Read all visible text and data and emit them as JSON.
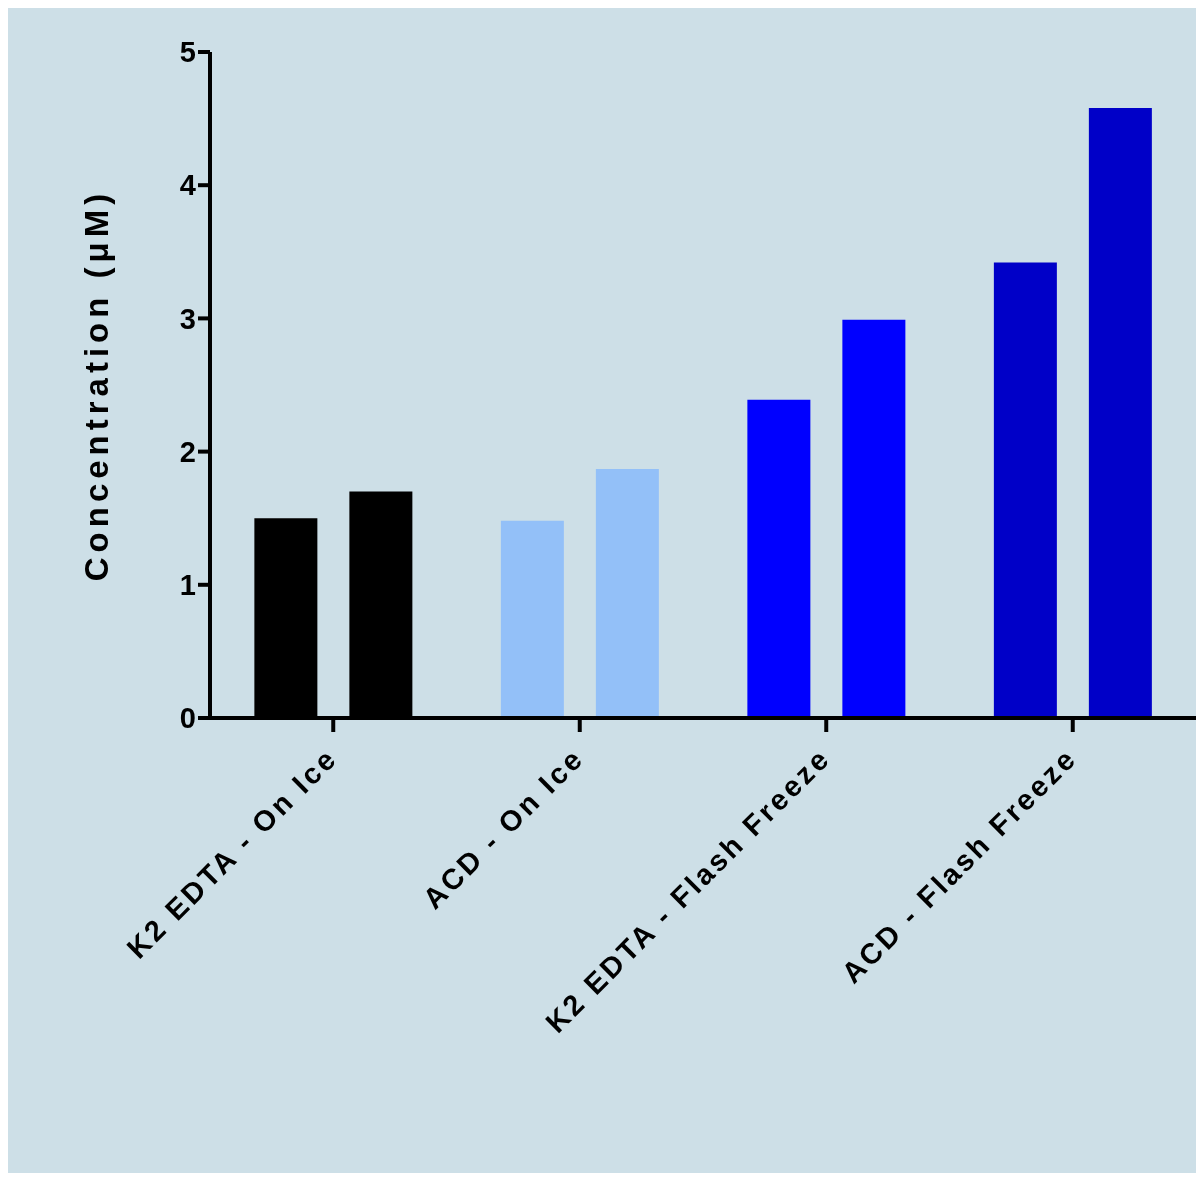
{
  "chart_data": {
    "type": "bar",
    "ylabel": "Concentration (μM)",
    "categories": [
      "K2 EDTA - On Ice",
      "ACD - On Ice",
      "K2 EDTA - Flash Freeze",
      "ACD - Flash Freeze"
    ],
    "series": [
      {
        "colors": [
          "#000000",
          "#93c0f8",
          "#0000ff",
          "#0000c8"
        ],
        "values": [
          1.5,
          1.48,
          2.39,
          3.42
        ]
      },
      {
        "colors": [
          "#000000",
          "#93c0f8",
          "#0000ff",
          "#0000c8"
        ],
        "values": [
          1.7,
          1.87,
          2.99,
          4.58
        ]
      }
    ],
    "ylim": [
      0,
      5
    ],
    "yticks": [
      0,
      1,
      2,
      3,
      4,
      5
    ],
    "grid": false,
    "legend": false
  }
}
